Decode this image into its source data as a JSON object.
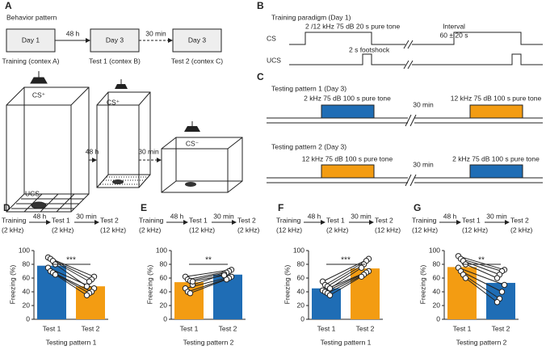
{
  "panels": {
    "a": {
      "label": "A",
      "title": "Behavior pattern",
      "boxes": [
        "Day 1",
        "Day 3",
        "Day 3"
      ],
      "gaps": [
        "48 h",
        "30 min"
      ],
      "captions": [
        "Training (contex A)",
        "Test 1 (contex B)",
        "Test 2 (contex C)"
      ],
      "cage_labels": [
        "CS⁺",
        "UCS",
        "CS⁺",
        "CS⁻"
      ],
      "cage_gaps": [
        "48 h",
        "30 min"
      ]
    },
    "b": {
      "label": "B",
      "title": "Training paradigm (Day 1)",
      "rows": [
        "CS",
        "UCS"
      ],
      "tone": "2 /12 kHz  75 dB 20 s pure tone",
      "interval": "Interval",
      "interval_value": "60 ± 20 s",
      "shock": "2 s footshock"
    },
    "c": {
      "label": "C",
      "patterns": [
        {
          "title": "Testing pattern 1 (Day 3)",
          "tones": [
            "2 kHz 75 dB 100 s pure tone",
            "12 kHz 75 dB 100 s pure tone"
          ],
          "gap": "30 min"
        },
        {
          "title": "Testing pattern 2 (Day 3)",
          "tones": [
            "12 kHz 75 dB 100 s pure tone",
            "2 kHz 75 dB 100 s pure tone"
          ],
          "gap": "30 min"
        }
      ]
    }
  },
  "chart_data": [
    {
      "type": "bar",
      "label": "D",
      "steps": [
        "Training",
        "Test 1",
        "Test 2"
      ],
      "freqs": [
        "(2 kHz)",
        "(2 kHz)",
        "(12 kHz)"
      ],
      "gaps": [
        "48 h",
        "30 min"
      ],
      "ylabel": "Freezing (%)",
      "categories": [
        "Test 1",
        "Test 2"
      ],
      "values": [
        78,
        48
      ],
      "colors": [
        "#1f6db5",
        "#f39c12"
      ],
      "points": [
        [
          90,
          88,
          85,
          80,
          75,
          70,
          68,
          65
        ],
        [
          62,
          58,
          55,
          48,
          45,
          40,
          38,
          35
        ]
      ],
      "significance": "***",
      "xlabel": "Testing pattern 1",
      "ylim": [
        0,
        100
      ],
      "yticks": [
        0,
        20,
        40,
        60,
        80,
        100
      ]
    },
    {
      "type": "bar",
      "label": "E",
      "steps": [
        "Training",
        "Test 1",
        "Test 2"
      ],
      "freqs": [
        "(2 kHz)",
        "(12 kHz)",
        "(2 kHz)"
      ],
      "gaps": [
        "48 h",
        "30 min"
      ],
      "ylabel": "Freezing (%)",
      "categories": [
        "Test 1",
        "Test 2"
      ],
      "values": [
        54,
        65
      ],
      "colors": [
        "#f39c12",
        "#1f6db5"
      ],
      "points": [
        [
          62,
          58,
          56,
          50,
          45,
          40,
          38,
          55
        ],
        [
          72,
          70,
          68,
          66,
          62,
          60,
          58,
          64
        ]
      ],
      "significance": "**",
      "xlabel": "Testing pattern 2",
      "ylim": [
        0,
        100
      ],
      "yticks": [
        0,
        20,
        40,
        60,
        80,
        100
      ]
    },
    {
      "type": "bar",
      "label": "F",
      "steps": [
        "Training",
        "Test 1",
        "Test 2"
      ],
      "freqs": [
        "(12 kHz)",
        "(2 kHz)",
        "(12 kHz)"
      ],
      "gaps": [
        "48 h",
        "30 min"
      ],
      "ylabel": "Freezing (%)",
      "categories": [
        "Test 1",
        "Test 2"
      ],
      "values": [
        45,
        74
      ],
      "colors": [
        "#1f6db5",
        "#f39c12"
      ],
      "points": [
        [
          55,
          50,
          48,
          45,
          42,
          40,
          38,
          35
        ],
        [
          88,
          85,
          80,
          75,
          70,
          68,
          65,
          62
        ]
      ],
      "significance": "***",
      "xlabel": "Testing pattern 1",
      "ylim": [
        0,
        100
      ],
      "yticks": [
        0,
        20,
        40,
        60,
        80,
        100
      ]
    },
    {
      "type": "bar",
      "label": "G",
      "steps": [
        "Training",
        "Test 1",
        "Test 2"
      ],
      "freqs": [
        "(12 kHz)",
        "(12 kHz)",
        "(2 kHz)"
      ],
      "gaps": [
        "48 h",
        "30 min"
      ],
      "ylabel": "Freezing (%)",
      "categories": [
        "Test 1",
        "Test 2"
      ],
      "values": [
        76,
        53
      ],
      "colors": [
        "#f39c12",
        "#1f6db5"
      ],
      "points": [
        [
          92,
          88,
          85,
          80,
          75,
          70,
          65,
          60
        ],
        [
          72,
          70,
          65,
          60,
          50,
          40,
          30,
          25
        ]
      ],
      "significance": "**",
      "xlabel": "Testing pattern 2",
      "ylim": [
        0,
        100
      ],
      "yticks": [
        0,
        20,
        40,
        60,
        80,
        100
      ]
    }
  ]
}
